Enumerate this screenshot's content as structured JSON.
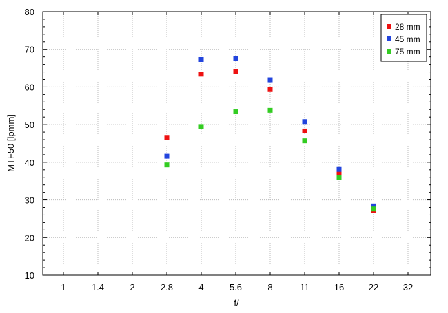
{
  "chart_data": {
    "type": "scatter",
    "xlabel": "f/",
    "ylabel": "MTF50 [lpmm]",
    "x_tick_labels": [
      "1",
      "1.4",
      "2",
      "2.8",
      "4",
      "5.6",
      "8",
      "11",
      "16",
      "22",
      "32"
    ],
    "x_scale": "categorical (f-stop steps)",
    "ylim": [
      10,
      80
    ],
    "y_ticks": [
      10,
      20,
      30,
      40,
      50,
      60,
      70,
      80
    ],
    "grid": true,
    "legend_position": "top-right",
    "series": [
      {
        "name": "28 mm",
        "color": "#ee1111",
        "points": [
          {
            "x": "2.8",
            "y": 46.6
          },
          {
            "x": "4",
            "y": 63.4
          },
          {
            "x": "5.6",
            "y": 64.1
          },
          {
            "x": "8",
            "y": 59.3
          },
          {
            "x": "11",
            "y": 48.3
          },
          {
            "x": "16",
            "y": 37.3
          },
          {
            "x": "22",
            "y": 27.2
          }
        ]
      },
      {
        "name": "45 mm",
        "color": "#2244dd",
        "points": [
          {
            "x": "2.8",
            "y": 41.6
          },
          {
            "x": "4",
            "y": 67.3
          },
          {
            "x": "5.6",
            "y": 67.5
          },
          {
            "x": "8",
            "y": 61.9
          },
          {
            "x": "11",
            "y": 50.8
          },
          {
            "x": "16",
            "y": 38.1
          },
          {
            "x": "22",
            "y": 28.4
          }
        ]
      },
      {
        "name": "75 mm",
        "color": "#33cc22",
        "points": [
          {
            "x": "2.8",
            "y": 39.3
          },
          {
            "x": "4",
            "y": 49.5
          },
          {
            "x": "5.6",
            "y": 53.4
          },
          {
            "x": "8",
            "y": 53.8
          },
          {
            "x": "11",
            "y": 45.7
          },
          {
            "x": "16",
            "y": 35.9
          },
          {
            "x": "22",
            "y": 27.6
          }
        ]
      }
    ]
  }
}
